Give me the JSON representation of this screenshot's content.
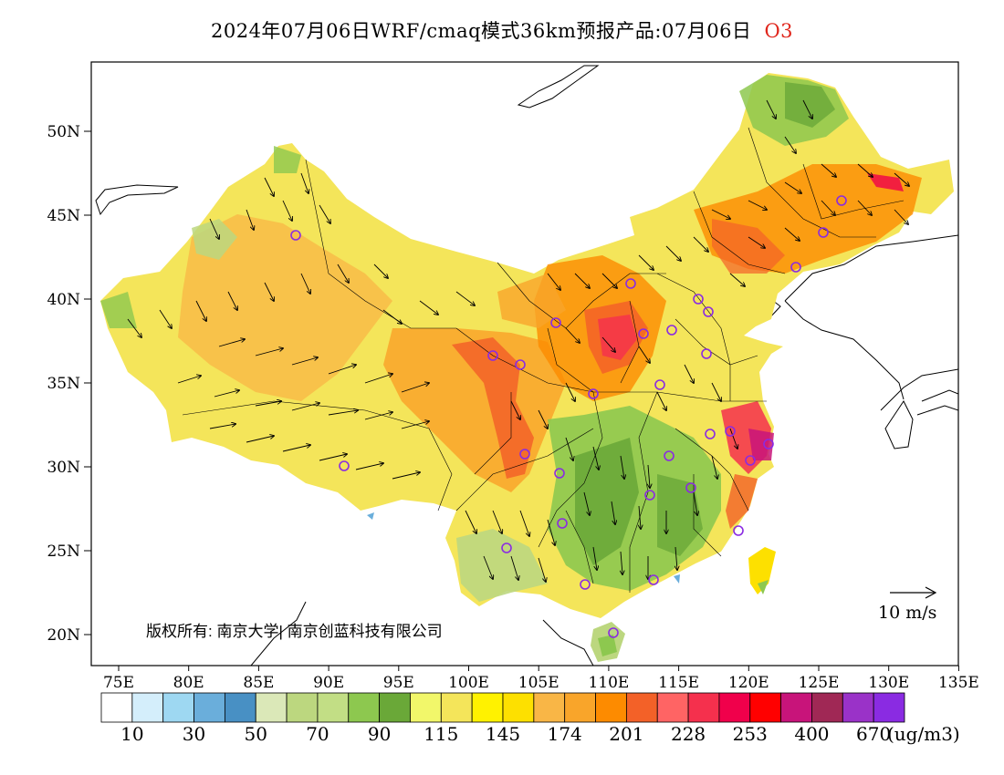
{
  "title": {
    "text": "2024年07月06日WRF/cmaq模式36km预报产品:07月06日",
    "species": "O3"
  },
  "map": {
    "lat_ticks": [
      "50N",
      "45N",
      "40N",
      "35N",
      "30N",
      "25N",
      "20N"
    ],
    "lon_ticks": [
      "75E",
      "80E",
      "85E",
      "90E",
      "95E",
      "100E",
      "105E",
      "110E",
      "115E",
      "120E",
      "125E",
      "130E",
      "135E"
    ],
    "copyright": "版权所有: 南京大学| 南京创蓝科技有限公司",
    "wind_scale_label": "10 m/s",
    "station_marker_color": "#8a2be2"
  },
  "colorbar": {
    "colors": [
      "#ffffff",
      "#d4eefb",
      "#9ed8f2",
      "#6aaedb",
      "#4890c4",
      "#dbe8b8",
      "#bcd77f",
      "#c2de85",
      "#8dc84f",
      "#6aa838",
      "#f2f76a",
      "#f4e55a",
      "#fff200",
      "#fde000",
      "#f9b646",
      "#f9a52a",
      "#fd8b00",
      "#f36128",
      "#ff6464",
      "#f5304d",
      "#f0004b",
      "#ff0000",
      "#c8147a",
      "#a02855",
      "#9a32c8",
      "#8a2be2"
    ],
    "labels": [
      "10",
      "30",
      "50",
      "70",
      "90",
      "115",
      "145",
      "174",
      "201",
      "228",
      "253",
      "400",
      "670"
    ],
    "unit": "(ug/m3)"
  }
}
